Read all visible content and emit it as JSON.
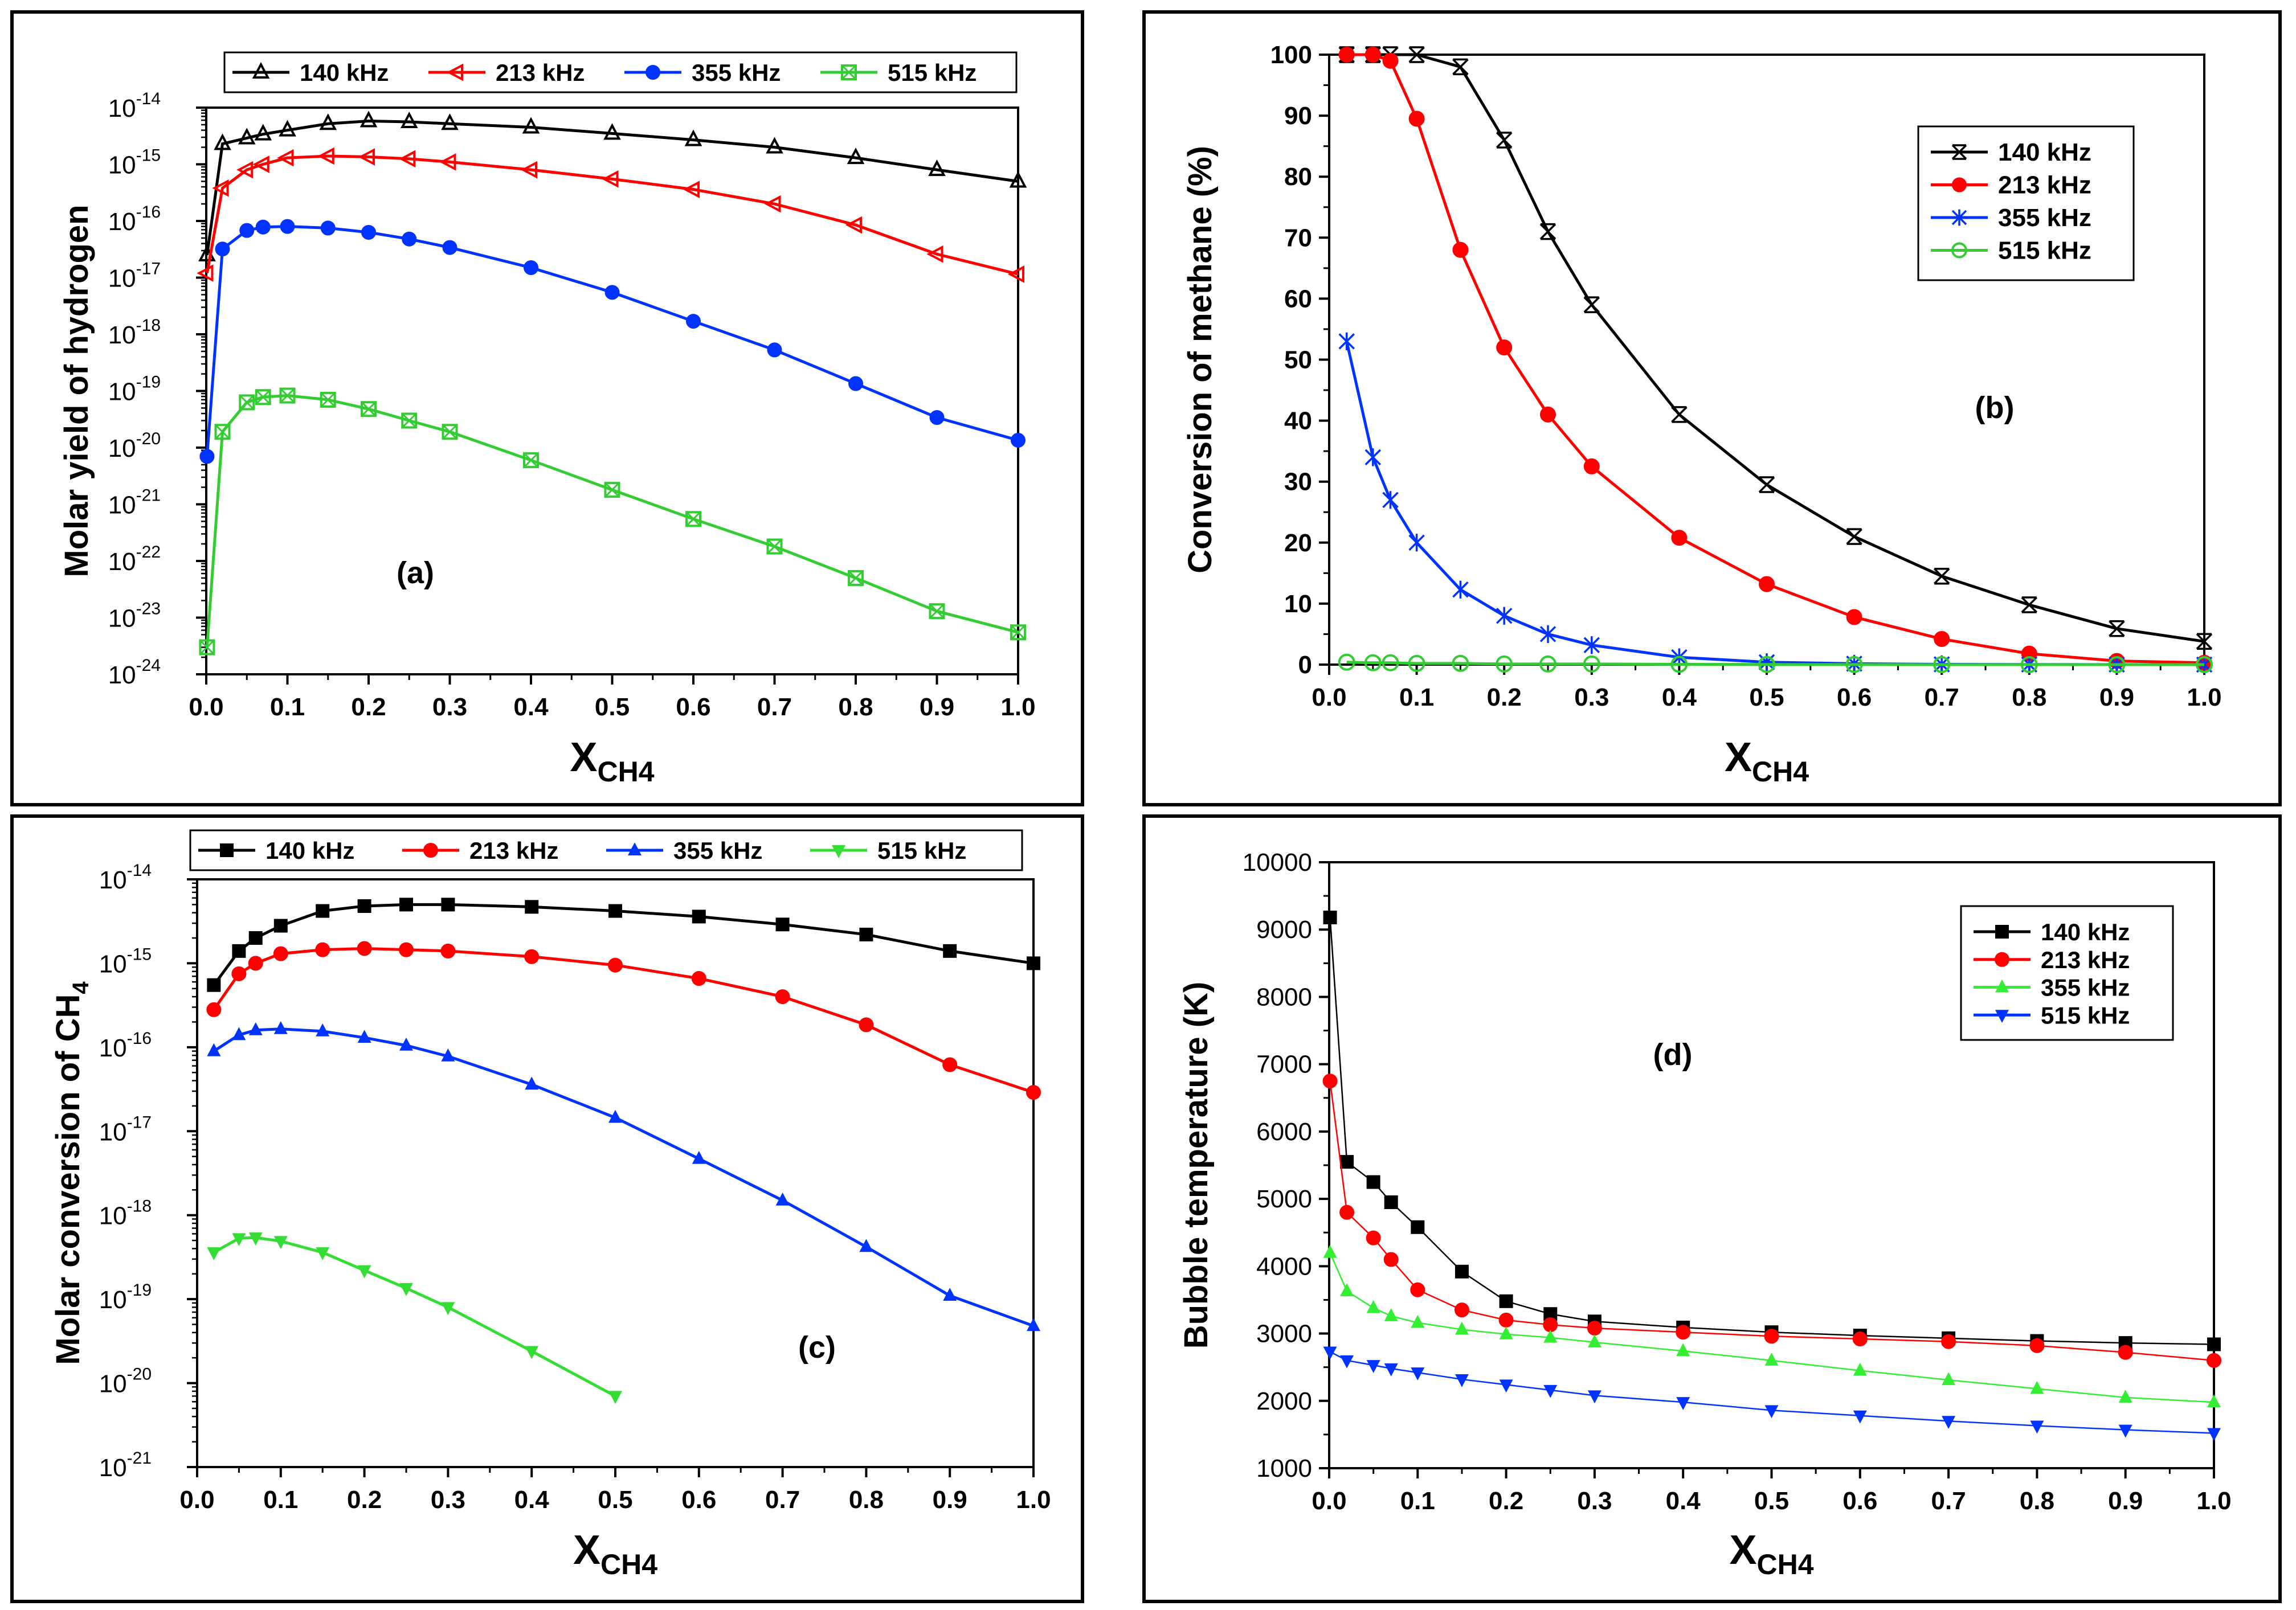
{
  "chart_data": [
    {
      "id": "a",
      "type": "line",
      "scale": "log",
      "panel_label": "(a)",
      "xlabel": "X",
      "xlabel_sub": "CH4",
      "ylabel": "Molar yield of hydrogen",
      "xlim": [
        0,
        1
      ],
      "ylim_exp": [
        -24,
        -14
      ],
      "xticks": [
        "0.0",
        "0.1",
        "0.2",
        "0.3",
        "0.4",
        "0.5",
        "0.6",
        "0.7",
        "0.8",
        "0.9",
        "1.0"
      ],
      "yticks_exp": [
        "-14",
        "-15",
        "-16",
        "-17",
        "-18",
        "-19",
        "-20",
        "-21",
        "-22",
        "-23",
        "-24"
      ],
      "legend": "top-horizontal",
      "series": [
        {
          "name": "140 kHz",
          "color": "#000000",
          "marker": "triangle-up-open",
          "x": [
            0.001,
            0.02,
            0.05,
            0.07,
            0.1,
            0.15,
            0.2,
            0.25,
            0.3,
            0.4,
            0.5,
            0.6,
            0.7,
            0.8,
            0.9,
            1.0
          ],
          "y": [
            2.5e-17,
            2.3e-15,
            2.9e-15,
            3.4e-15,
            4e-15,
            5.2e-15,
            5.8e-15,
            5.6e-15,
            5.2e-15,
            4.5e-15,
            3.5e-15,
            2.7e-15,
            2e-15,
            1.3e-15,
            8e-16,
            5e-16
          ]
        },
        {
          "name": "213 kHz",
          "color": "#ff0000",
          "marker": "triangle-left-open",
          "x": [
            0.001,
            0.02,
            0.05,
            0.07,
            0.1,
            0.15,
            0.2,
            0.25,
            0.3,
            0.4,
            0.5,
            0.6,
            0.7,
            0.8,
            0.9,
            1.0
          ],
          "y": [
            1.2e-17,
            3.8e-16,
            8e-16,
            1e-15,
            1.3e-15,
            1.4e-15,
            1.35e-15,
            1.25e-15,
            1.1e-15,
            8e-16,
            5.5e-16,
            3.6e-16,
            2e-16,
            8.5e-17,
            2.6e-17,
            1.15e-17
          ]
        },
        {
          "name": "355 kHz",
          "color": "#0033ff",
          "marker": "circle-filled",
          "x": [
            0.001,
            0.02,
            0.05,
            0.07,
            0.1,
            0.15,
            0.2,
            0.25,
            0.3,
            0.4,
            0.5,
            0.6,
            0.7,
            0.8,
            0.9,
            1.0
          ],
          "y": [
            7e-21,
            3.2e-17,
            6.8e-17,
            7.8e-17,
            8e-17,
            7.5e-17,
            6.3e-17,
            4.8e-17,
            3.4e-17,
            1.5e-17,
            5.5e-18,
            1.7e-18,
            5.3e-19,
            1.35e-19,
            3.4e-20,
            1.35e-20
          ]
        },
        {
          "name": "515 kHz",
          "color": "#33cc33",
          "marker": "square-cross-open",
          "x": [
            0.001,
            0.02,
            0.05,
            0.07,
            0.1,
            0.15,
            0.2,
            0.25,
            0.3,
            0.4,
            0.5,
            0.6,
            0.7,
            0.8,
            0.9,
            1.0
          ],
          "y": [
            3e-24,
            1.9e-20,
            6.3e-20,
            7.8e-20,
            8.3e-20,
            7e-20,
            4.8e-20,
            3e-20,
            1.9e-20,
            6e-21,
            1.8e-21,
            5.5e-22,
            1.8e-22,
            5e-23,
            1.3e-23,
            5.5e-24
          ]
        }
      ]
    },
    {
      "id": "b",
      "type": "line",
      "scale": "linear",
      "panel_label": "(b)",
      "xlabel": "X",
      "xlabel_sub": "CH4",
      "ylabel": "Conversion of methane (%)",
      "xlim": [
        0,
        1
      ],
      "ylim": [
        0,
        100
      ],
      "xticks": [
        "0.0",
        "0.1",
        "0.2",
        "0.3",
        "0.4",
        "0.5",
        "0.6",
        "0.7",
        "0.8",
        "0.9",
        "1.0"
      ],
      "yticks": [
        "0",
        "10",
        "20",
        "30",
        "40",
        "50",
        "60",
        "70",
        "80",
        "90",
        "100"
      ],
      "legend": "upper-right",
      "series": [
        {
          "name": "140 kHz",
          "color": "#000000",
          "marker": "x-bar",
          "x": [
            0.02,
            0.05,
            0.07,
            0.1,
            0.15,
            0.2,
            0.25,
            0.3,
            0.4,
            0.5,
            0.6,
            0.7,
            0.8,
            0.9,
            1.0
          ],
          "y": [
            100,
            100,
            100,
            100,
            98,
            86,
            71,
            59,
            41,
            29.5,
            21,
            14.5,
            9.8,
            5.9,
            3.8
          ]
        },
        {
          "name": "213 kHz",
          "color": "#ff0000",
          "marker": "circle-filled",
          "x": [
            0.02,
            0.05,
            0.07,
            0.1,
            0.15,
            0.2,
            0.25,
            0.3,
            0.4,
            0.5,
            0.6,
            0.7,
            0.8,
            0.9,
            1.0
          ],
          "y": [
            100,
            100,
            99,
            89.5,
            68,
            52,
            41,
            32.5,
            20.8,
            13.2,
            7.8,
            4.2,
            1.8,
            0.6,
            0.3
          ]
        },
        {
          "name": "355 kHz",
          "color": "#0033ff",
          "marker": "asterisk",
          "x": [
            0.02,
            0.05,
            0.07,
            0.1,
            0.15,
            0.2,
            0.25,
            0.3,
            0.4,
            0.5,
            0.6,
            0.7,
            0.8,
            0.9,
            1.0
          ],
          "y": [
            53,
            34,
            27,
            20,
            12.3,
            8,
            5,
            3.2,
            1.2,
            0.4,
            0.15,
            0.05,
            0.02,
            0.01,
            0
          ]
        },
        {
          "name": "515 kHz",
          "color": "#33cc33",
          "marker": "circle-open",
          "x": [
            0.02,
            0.05,
            0.07,
            0.1,
            0.15,
            0.2,
            0.25,
            0.3,
            0.4,
            0.5,
            0.6,
            0.7,
            0.8,
            0.9,
            1.0
          ],
          "y": [
            0.4,
            0.3,
            0.3,
            0.2,
            0.2,
            0.1,
            0.1,
            0.1,
            0.05,
            0.02,
            0.01,
            0,
            0,
            0,
            0
          ]
        }
      ]
    },
    {
      "id": "c",
      "type": "line",
      "scale": "log",
      "panel_label": "(c)",
      "xlabel": "X",
      "xlabel_sub": "CH4",
      "ylabel": "Molar conversion of CH",
      "ylabel_sub": "4",
      "xlim": [
        0,
        1
      ],
      "ylim_exp": [
        -21,
        -14
      ],
      "xticks": [
        "0.0",
        "0.1",
        "0.2",
        "0.3",
        "0.4",
        "0.5",
        "0.6",
        "0.7",
        "0.8",
        "0.9",
        "1.0"
      ],
      "yticks_exp": [
        "-14",
        "-15",
        "-16",
        "-17",
        "-18",
        "-19",
        "-20",
        "-21"
      ],
      "legend": "top-horizontal",
      "series": [
        {
          "name": "140 kHz",
          "color": "#000000",
          "marker": "square-filled",
          "x": [
            0.02,
            0.05,
            0.07,
            0.1,
            0.15,
            0.2,
            0.25,
            0.3,
            0.4,
            0.5,
            0.6,
            0.7,
            0.8,
            0.9,
            1.0
          ],
          "y": [
            5.5e-16,
            1.4e-15,
            2e-15,
            2.8e-15,
            4.2e-15,
            4.8e-15,
            5e-15,
            5e-15,
            4.7e-15,
            4.2e-15,
            3.6e-15,
            2.9e-15,
            2.2e-15,
            1.4e-15,
            1e-15
          ]
        },
        {
          "name": "213 kHz",
          "color": "#ff0000",
          "marker": "circle-filled",
          "x": [
            0.02,
            0.05,
            0.07,
            0.1,
            0.15,
            0.2,
            0.25,
            0.3,
            0.4,
            0.5,
            0.6,
            0.7,
            0.8,
            0.9,
            1.0
          ],
          "y": [
            2.8e-16,
            7.5e-16,
            1e-15,
            1.3e-15,
            1.45e-15,
            1.5e-15,
            1.45e-15,
            1.4e-15,
            1.2e-15,
            9.5e-16,
            6.6e-16,
            4e-16,
            1.85e-16,
            6.2e-17,
            2.9e-17
          ]
        },
        {
          "name": "355 kHz",
          "color": "#0033ff",
          "marker": "triangle-up-filled",
          "x": [
            0.02,
            0.05,
            0.07,
            0.1,
            0.15,
            0.2,
            0.25,
            0.3,
            0.4,
            0.5,
            0.6,
            0.7,
            0.8,
            0.9,
            1.0
          ],
          "y": [
            9e-17,
            1.4e-16,
            1.6e-16,
            1.65e-16,
            1.55e-16,
            1.3e-16,
            1.05e-16,
            7.8e-17,
            3.6e-17,
            1.45e-17,
            4.7e-18,
            1.5e-18,
            4.2e-19,
            1.1e-19,
            4.8e-20
          ]
        },
        {
          "name": "515 kHz",
          "color": "#33dd33",
          "marker": "triangle-down-filled",
          "x": [
            0.02,
            0.05,
            0.07,
            0.1,
            0.15,
            0.2,
            0.25,
            0.3,
            0.4,
            0.5
          ],
          "y": [
            3.6e-19,
            5.3e-19,
            5.4e-19,
            4.9e-19,
            3.6e-19,
            2.2e-19,
            1.35e-19,
            8e-20,
            2.4e-20,
            7e-21
          ]
        }
      ]
    },
    {
      "id": "d",
      "type": "line",
      "scale": "linear",
      "panel_label": "(d)",
      "xlabel": "X",
      "xlabel_sub": "CH4",
      "ylabel": "Bubble temperature (K)",
      "xlim": [
        0,
        1
      ],
      "ylim": [
        1000,
        10000
      ],
      "xticks": [
        "0.0",
        "0.1",
        "0.2",
        "0.3",
        "0.4",
        "0.5",
        "0.6",
        "0.7",
        "0.8",
        "0.9",
        "1.0"
      ],
      "yticks": [
        "1000",
        "2000",
        "3000",
        "4000",
        "5000",
        "6000",
        "7000",
        "8000",
        "9000",
        "10000"
      ],
      "legend": "upper-right",
      "series": [
        {
          "name": "140 kHz",
          "color": "#000000",
          "marker": "square-filled",
          "x": [
            0.001,
            0.02,
            0.05,
            0.07,
            0.1,
            0.15,
            0.2,
            0.25,
            0.3,
            0.4,
            0.5,
            0.6,
            0.7,
            0.8,
            0.9,
            1.0
          ],
          "y": [
            9180,
            5550,
            5250,
            4950,
            4580,
            3920,
            3480,
            3290,
            3180,
            3090,
            3020,
            2970,
            2930,
            2890,
            2860,
            2840
          ]
        },
        {
          "name": "213 kHz",
          "color": "#ff0000",
          "marker": "circle-filled",
          "x": [
            0.001,
            0.02,
            0.05,
            0.07,
            0.1,
            0.15,
            0.2,
            0.25,
            0.3,
            0.4,
            0.5,
            0.6,
            0.7,
            0.8,
            0.9,
            1.0
          ],
          "y": [
            6750,
            4800,
            4420,
            4100,
            3650,
            3350,
            3200,
            3130,
            3080,
            3020,
            2960,
            2920,
            2880,
            2820,
            2720,
            2600
          ]
        },
        {
          "name": "355 kHz",
          "color": "#33ee33",
          "marker": "triangle-up-filled",
          "x": [
            0.001,
            0.02,
            0.05,
            0.07,
            0.1,
            0.15,
            0.2,
            0.25,
            0.3,
            0.4,
            0.5,
            0.6,
            0.7,
            0.8,
            0.9,
            1.0
          ],
          "y": [
            4200,
            3630,
            3380,
            3260,
            3160,
            3060,
            2990,
            2940,
            2870,
            2740,
            2600,
            2450,
            2310,
            2180,
            2050,
            1980
          ]
        },
        {
          "name": "515 kHz",
          "color": "#0033ff",
          "marker": "triangle-down-filled",
          "x": [
            0.001,
            0.02,
            0.05,
            0.07,
            0.1,
            0.15,
            0.2,
            0.25,
            0.3,
            0.4,
            0.5,
            0.6,
            0.7,
            0.8,
            0.9,
            1.0
          ],
          "y": [
            2730,
            2600,
            2530,
            2480,
            2420,
            2320,
            2240,
            2160,
            2080,
            1980,
            1860,
            1780,
            1700,
            1630,
            1570,
            1520
          ]
        }
      ]
    }
  ]
}
